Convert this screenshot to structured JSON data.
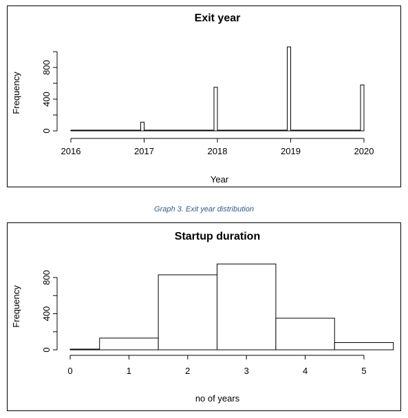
{
  "caption": "Graph 3. Exit year distribution",
  "chart_data": [
    {
      "type": "bar",
      "title": "Exit year",
      "xlabel": "Year",
      "ylabel": "Frequency",
      "categories": [
        "2017",
        "2018",
        "2019",
        "2020"
      ],
      "x": [
        2017,
        2018,
        2019,
        2020
      ],
      "values": [
        110,
        550,
        1060,
        580
      ],
      "xlim": [
        2016,
        2020
      ],
      "ylim": [
        0,
        1000
      ],
      "xticks": [
        "2016",
        "2017",
        "2018",
        "2019",
        "2020"
      ],
      "yticks": [
        "0",
        "400",
        "800"
      ],
      "grid": false,
      "legend": "none"
    },
    {
      "type": "bar",
      "title": "Startup duration",
      "xlabel": "no of years",
      "ylabel": "Frequency",
      "categories": [
        "1",
        "2",
        "3",
        "4",
        "5"
      ],
      "x": [
        1,
        2,
        3,
        4,
        5
      ],
      "values": [
        130,
        830,
        950,
        350,
        80
      ],
      "xlim": [
        0,
        5
      ],
      "ylim": [
        0,
        800
      ],
      "xticks": [
        "0",
        "1",
        "2",
        "3",
        "4",
        "5"
      ],
      "yticks": [
        "0",
        "400",
        "800"
      ],
      "grid": false,
      "legend": "none"
    }
  ]
}
